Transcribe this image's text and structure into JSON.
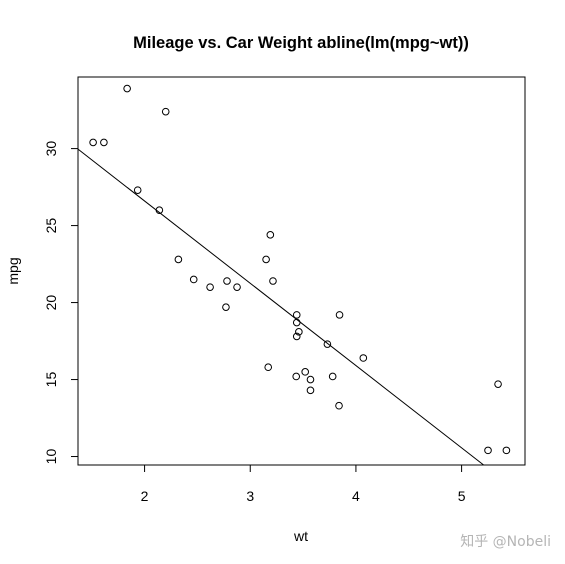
{
  "chart_data": {
    "type": "scatter",
    "title": "Mileage vs. Car Weight abline(lm(mpg~wt))",
    "xlabel": "wt",
    "ylabel": "mpg",
    "xlim": [
      1.37,
      5.6
    ],
    "ylim": [
      9.45,
      34.65
    ],
    "xticks": [
      2,
      3,
      4,
      5
    ],
    "yticks": [
      10,
      15,
      20,
      25,
      30
    ],
    "xtick_labels": [
      "2",
      "3",
      "4",
      "5"
    ],
    "ytick_labels": [
      "10",
      "15",
      "20",
      "25",
      "30"
    ],
    "grid": false,
    "legend": "none",
    "point_style": "open-circle",
    "regression_line": {
      "intercept": 37.285,
      "slope": -5.344
    },
    "points": [
      {
        "x": 2.62,
        "y": 21.0
      },
      {
        "x": 2.875,
        "y": 21.0
      },
      {
        "x": 2.32,
        "y": 22.8
      },
      {
        "x": 3.215,
        "y": 21.4
      },
      {
        "x": 3.44,
        "y": 18.7
      },
      {
        "x": 3.46,
        "y": 18.1
      },
      {
        "x": 3.57,
        "y": 14.3
      },
      {
        "x": 3.19,
        "y": 24.4
      },
      {
        "x": 3.15,
        "y": 22.8
      },
      {
        "x": 3.44,
        "y": 19.2
      },
      {
        "x": 3.44,
        "y": 17.8
      },
      {
        "x": 4.07,
        "y": 16.4
      },
      {
        "x": 3.73,
        "y": 17.3
      },
      {
        "x": 3.78,
        "y": 15.2
      },
      {
        "x": 5.25,
        "y": 10.4
      },
      {
        "x": 5.424,
        "y": 10.4
      },
      {
        "x": 5.345,
        "y": 14.7
      },
      {
        "x": 2.2,
        "y": 32.4
      },
      {
        "x": 1.615,
        "y": 30.4
      },
      {
        "x": 1.835,
        "y": 33.9
      },
      {
        "x": 2.465,
        "y": 21.5
      },
      {
        "x": 3.52,
        "y": 15.5
      },
      {
        "x": 3.435,
        "y": 15.2
      },
      {
        "x": 3.84,
        "y": 13.3
      },
      {
        "x": 3.845,
        "y": 19.2
      },
      {
        "x": 1.935,
        "y": 27.3
      },
      {
        "x": 2.14,
        "y": 26.0
      },
      {
        "x": 1.513,
        "y": 30.4
      },
      {
        "x": 3.17,
        "y": 15.8
      },
      {
        "x": 2.77,
        "y": 19.7
      },
      {
        "x": 3.57,
        "y": 15.0
      },
      {
        "x": 2.78,
        "y": 21.4
      }
    ]
  },
  "watermark": "知乎 @Nobeli"
}
